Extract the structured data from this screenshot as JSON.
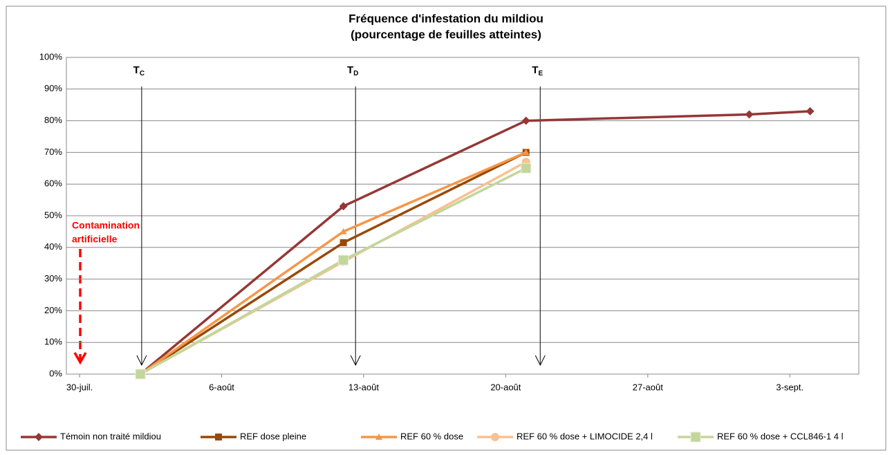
{
  "chart_data": {
    "type": "line",
    "title": [
      "Fréquence d'infestation du mildiou",
      "(pourcentage de feuilles atteintes)"
    ],
    "xlim": [
      -0.65,
      38.4
    ],
    "xticks": [
      {
        "value": 0,
        "label": "30-juil."
      },
      {
        "value": 7,
        "label": "6-août"
      },
      {
        "value": 14,
        "label": "13-août"
      },
      {
        "value": 21,
        "label": "20-août"
      },
      {
        "value": 28,
        "label": "27-août"
      },
      {
        "value": 35,
        "label": "3-sept."
      }
    ],
    "ylim": [
      0,
      100
    ],
    "yticks": [
      {
        "value": 0,
        "label": "0%"
      },
      {
        "value": 10,
        "label": "10%"
      },
      {
        "value": 20,
        "label": "20%"
      },
      {
        "value": 30,
        "label": "30%"
      },
      {
        "value": 40,
        "label": "40%"
      },
      {
        "value": 50,
        "label": "50%"
      },
      {
        "value": 60,
        "label": "60%"
      },
      {
        "value": 70,
        "label": "70%"
      },
      {
        "value": 80,
        "label": "80%"
      },
      {
        "value": 90,
        "label": "90%"
      },
      {
        "value": 100,
        "label": "100%"
      }
    ],
    "grid": true,
    "legend": "bottom",
    "series": [
      {
        "name": "Témoin non traité mildiou",
        "color": "#953735",
        "marker": "diamond",
        "x": [
          3,
          13,
          22,
          33,
          36
        ],
        "values": [
          0,
          53,
          80,
          82,
          83
        ]
      },
      {
        "name": "REF dose pleine",
        "color": "#984807",
        "marker": "square",
        "x": [
          3,
          13,
          22
        ],
        "values": [
          0,
          41.5,
          70
        ]
      },
      {
        "name": "REF 60 % dose",
        "color": "#f79646",
        "marker": "triangle",
        "x": [
          3,
          13,
          22
        ],
        "values": [
          0,
          45,
          70
        ]
      },
      {
        "name": "REF 60 % dose  + LIMOCIDE 2,4 l",
        "color": "#fac090",
        "marker": "circle",
        "x": [
          3,
          13,
          22
        ],
        "values": [
          0,
          35.5,
          67
        ]
      },
      {
        "name": "REF 60 % dose  + CCL846-1 4 l",
        "color": "#c3d69b",
        "marker": "plus-square",
        "x": [
          3,
          13,
          22
        ],
        "values": [
          0,
          36,
          65
        ]
      }
    ],
    "annotations": [
      {
        "label": "T",
        "sub": "C",
        "x": 3.06
      },
      {
        "label": "T",
        "sub": "D",
        "x": 13.6
      },
      {
        "label": "T",
        "sub": "E",
        "x": 22.7
      }
    ],
    "note": [
      "Contamination",
      "artificielle"
    ]
  }
}
